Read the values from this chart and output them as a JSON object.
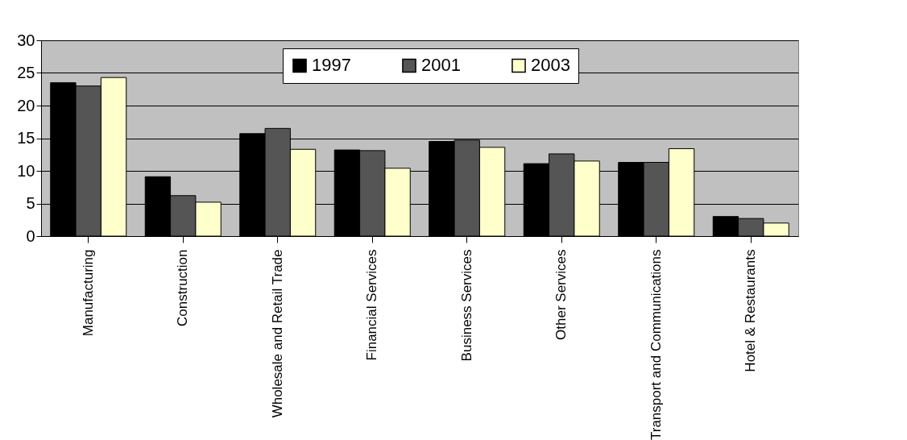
{
  "chart_data": {
    "type": "bar",
    "categories": [
      "Manufacturing",
      "Construction",
      "Wholesale and Retail Trade",
      "Financial Services",
      "Business Services",
      "Other Services",
      "Transport and Communications",
      "Hotel & Restaurants"
    ],
    "series": [
      {
        "name": "1997",
        "color": "#000000",
        "values": [
          23.5,
          9.1,
          15.7,
          13.2,
          14.5,
          11.1,
          11.3,
          3.0
        ]
      },
      {
        "name": "2001",
        "color": "#555555",
        "values": [
          23.0,
          6.2,
          16.5,
          13.1,
          14.7,
          12.6,
          11.3,
          2.7
        ]
      },
      {
        "name": "2003",
        "color": "#ffffcc",
        "values": [
          24.3,
          5.2,
          13.3,
          10.4,
          13.6,
          11.5,
          13.4,
          2.0
        ]
      }
    ],
    "ylim": [
      0,
      30
    ],
    "yticks": [
      0,
      5,
      10,
      15,
      20,
      25,
      30
    ],
    "grid": "y",
    "legend": "top"
  }
}
